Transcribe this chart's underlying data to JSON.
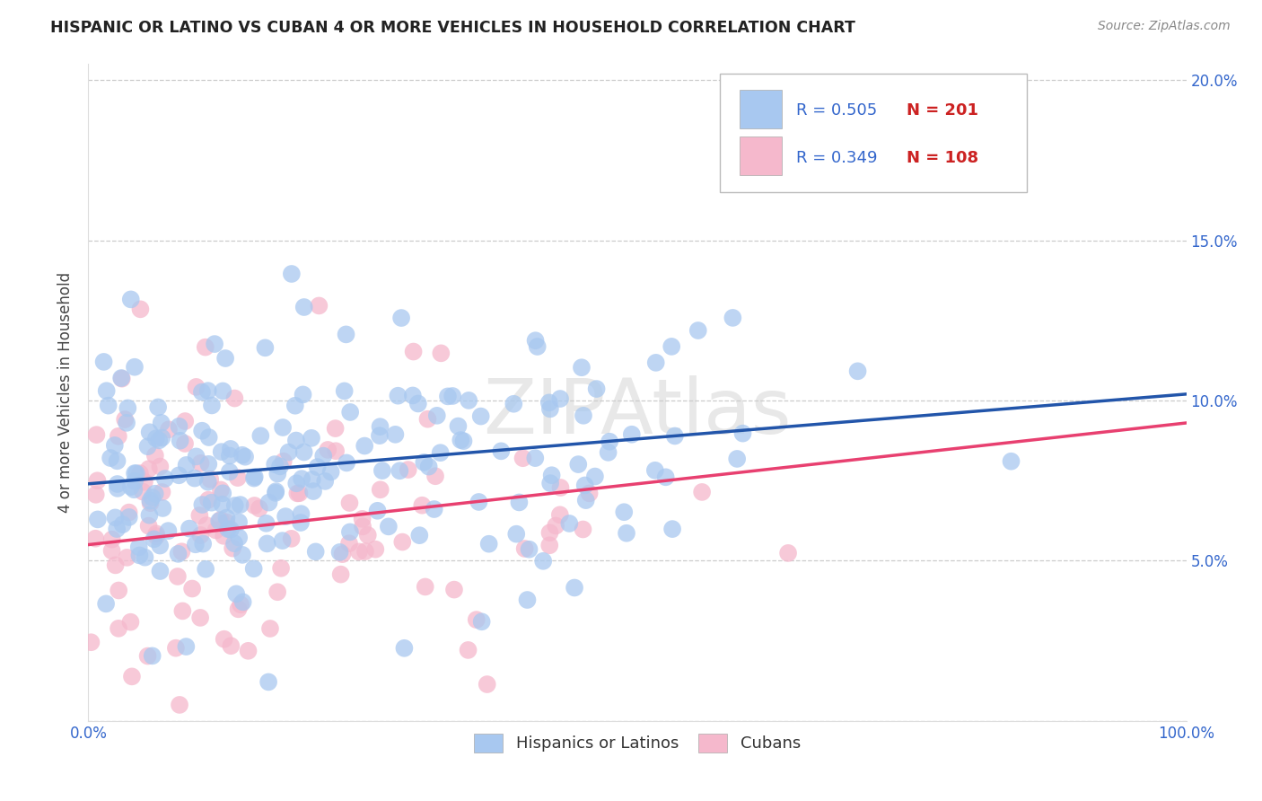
{
  "title": "HISPANIC OR LATINO VS CUBAN 4 OR MORE VEHICLES IN HOUSEHOLD CORRELATION CHART",
  "source": "Source: ZipAtlas.com",
  "ylabel": "4 or more Vehicles in Household",
  "xmin": 0.0,
  "xmax": 1.0,
  "ymin": 0.0,
  "ymax": 0.205,
  "blue_R": 0.505,
  "blue_N": 201,
  "pink_R": 0.349,
  "pink_N": 108,
  "blue_color": "#a8c8f0",
  "pink_color": "#f5b8cc",
  "blue_line_color": "#2255aa",
  "pink_line_color": "#e84070",
  "legend_R_color": "#3366cc",
  "legend_N_color": "#cc2222",
  "title_color": "#222222",
  "background_color": "#ffffff",
  "grid_color": "#cccccc",
  "watermark": "ZIPAtlas",
  "xticks": [
    0.0,
    0.2,
    0.4,
    0.6,
    0.8,
    1.0
  ],
  "xticklabels": [
    "0.0%",
    "",
    "",
    "",
    "",
    "100.0%"
  ],
  "ytick_vals": [
    0.0,
    0.05,
    0.1,
    0.15,
    0.2
  ],
  "ytick_labels_right": [
    "",
    "5.0%",
    "10.0%",
    "15.0%",
    "20.0%"
  ],
  "blue_intercept": 0.074,
  "blue_slope": 0.028,
  "pink_intercept": 0.055,
  "pink_slope": 0.038,
  "legend_label_blue": "Hispanics or Latinos",
  "legend_label_pink": "Cubans"
}
